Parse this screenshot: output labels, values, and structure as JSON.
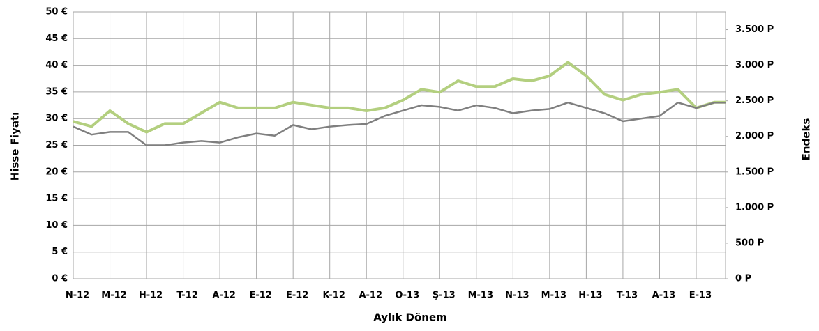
{
  "chart_data": {
    "type": "line",
    "x_label": "Aylık Dönem",
    "y_label": "Hisse Fiyatı",
    "y2_label": "Endeks",
    "x": [
      0,
      0.5,
      1,
      1.5,
      2,
      2.5,
      3,
      3.5,
      4,
      4.5,
      5,
      5.5,
      6,
      6.5,
      7,
      7.5,
      8,
      8.5,
      9,
      9.5,
      10,
      10.5,
      11,
      11.5,
      12,
      12.5,
      13,
      13.5,
      14,
      14.5,
      15,
      15.5,
      16,
      16.5,
      17,
      17.5,
      17.8
    ],
    "series": [
      {
        "color": "#b3cf7f",
        "axis": "y2",
        "values": [
          2210,
          2140,
          2360,
          2180,
          2060,
          2180,
          2180,
          2330,
          2480,
          2400,
          2400,
          2400,
          2480,
          2440,
          2400,
          2400,
          2360,
          2400,
          2510,
          2660,
          2620,
          2780,
          2700,
          2700,
          2810,
          2780,
          2850,
          3040,
          2850,
          2590,
          2510,
          2590,
          2620,
          2660,
          2400,
          2480,
          2480
        ]
      },
      {
        "color": "#7f7f7f",
        "values": [
          28.5,
          27,
          27.5,
          27.5,
          25,
          25,
          25.5,
          25.8,
          25.5,
          26.5,
          27.2,
          26.8,
          28.8,
          28,
          28.5,
          28.8,
          29,
          30.5,
          31.5,
          32.5,
          32.2,
          31.5,
          32.5,
          32,
          31,
          31.5,
          31.8,
          33,
          32,
          31,
          29.5,
          30,
          30.5,
          33,
          32,
          33,
          33
        ]
      }
    ],
    "xlim": [
      0,
      17.8
    ],
    "xticks": [
      {
        "value": 0,
        "label": "N-12"
      },
      {
        "value": 1,
        "label": "M-12"
      },
      {
        "value": 2,
        "label": "H-12"
      },
      {
        "value": 3,
        "label": "T-12"
      },
      {
        "value": 4,
        "label": "A-12"
      },
      {
        "value": 5,
        "label": "E-12"
      },
      {
        "value": 6,
        "label": "E-12"
      },
      {
        "value": 7,
        "label": "K-12"
      },
      {
        "value": 8,
        "label": "A-12"
      },
      {
        "value": 9,
        "label": "O-13"
      },
      {
        "value": 10,
        "label": "Ş-13"
      },
      {
        "value": 11,
        "label": "M-13"
      },
      {
        "value": 12,
        "label": "N-13"
      },
      {
        "value": 13,
        "label": "M-13"
      },
      {
        "value": 14,
        "label": "H-13"
      },
      {
        "value": 15,
        "label": "T-13"
      },
      {
        "value": 16,
        "label": "A-13"
      },
      {
        "value": 17,
        "label": "E-13"
      }
    ],
    "ylim": [
      0,
      50
    ],
    "yticks": [
      {
        "value": 0,
        "label": "0 €"
      },
      {
        "value": 5,
        "label": "5 €"
      },
      {
        "value": 10,
        "label": "10 €"
      },
      {
        "value": 15,
        "label": "15 €"
      },
      {
        "value": 20,
        "label": "20 €"
      },
      {
        "value": 25,
        "label": "25 €"
      },
      {
        "value": 30,
        "label": "30 €"
      },
      {
        "value": 35,
        "label": "35 €"
      },
      {
        "value": 40,
        "label": "40 €"
      },
      {
        "value": 45,
        "label": "45 €"
      },
      {
        "value": 50,
        "label": "50 €"
      }
    ],
    "y2lim": [
      0,
      3750
    ],
    "y2ticks": [
      {
        "value": 0,
        "label": "0 P"
      },
      {
        "value": 500,
        "label": "500 P"
      },
      {
        "value": 1000,
        "label": "1.000 P"
      },
      {
        "value": 1500,
        "label": "1.500 P"
      },
      {
        "value": 2000,
        "label": "2.000 P"
      },
      {
        "value": 2500,
        "label": "2.500 P"
      },
      {
        "value": 3000,
        "label": "3.000 P"
      },
      {
        "value": 3500,
        "label": "3.500 P"
      }
    ],
    "grid": true
  }
}
